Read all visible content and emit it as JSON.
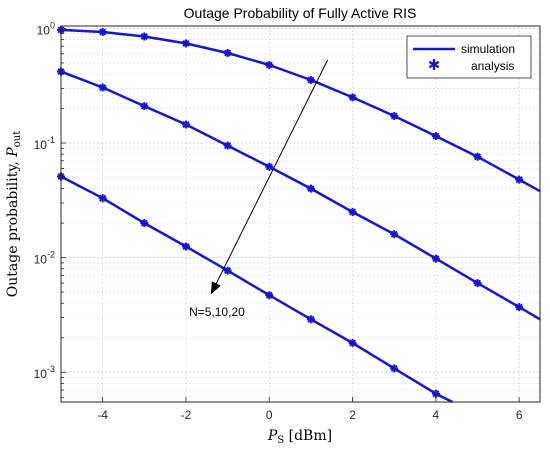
{
  "chart_data": {
    "type": "line",
    "title": "Outage Probability of Fully Active RIS",
    "xlabel_main": "P",
    "xlabel_sub": "S",
    "xlabel_unit": " [dBm]",
    "ylabel_main": "Outage probability, ",
    "ylabel_sym": "P",
    "ylabel_sub": "out",
    "xlim": [
      -5,
      6.5
    ],
    "ylim": [
      0.00055,
      1.05
    ],
    "y_scale": "log",
    "grid": true,
    "legend_position": "top-right",
    "legend": [
      {
        "label": "simulation",
        "style": "line"
      },
      {
        "label": "analysis",
        "style": "marker"
      }
    ],
    "x_ticks": [
      -4,
      -2,
      0,
      2,
      4,
      6
    ],
    "x_tick_labels": [
      "-4",
      "-2",
      "0",
      "2",
      "4",
      "6"
    ],
    "y_ticks": [
      {
        "value": 1,
        "base": "10",
        "exp": "0"
      },
      {
        "value": 0.1,
        "base": "10",
        "exp": "-1"
      },
      {
        "value": 0.01,
        "base": "10",
        "exp": "-2"
      },
      {
        "value": 0.001,
        "base": "10",
        "exp": "-3"
      }
    ],
    "annotation": {
      "text": "N=5,10,20",
      "arrow_from": [
        1.4,
        0.53
      ],
      "arrow_to": [
        -1.4,
        0.0048
      ]
    },
    "color": "#1515d4",
    "series": [
      {
        "x": [
          -5,
          -4,
          -3,
          -2,
          -1,
          0,
          1,
          2,
          3,
          4,
          5,
          6,
          6.5
        ],
        "y": [
          0.97,
          0.93,
          0.85,
          0.74,
          0.61,
          0.48,
          0.355,
          0.25,
          0.172,
          0.115,
          0.076,
          0.048,
          0.038
        ],
        "markers": [
          -5,
          -4,
          -3,
          -2,
          -1,
          0,
          1,
          2,
          3,
          4,
          5,
          6
        ]
      },
      {
        "x": [
          -5,
          -4,
          -3,
          -2,
          -1,
          0,
          1,
          2,
          3,
          4,
          5,
          6,
          6.5
        ],
        "y": [
          0.42,
          0.305,
          0.21,
          0.145,
          0.095,
          0.062,
          0.04,
          0.025,
          0.016,
          0.0098,
          0.006,
          0.0037,
          0.0029
        ],
        "markers": [
          -5,
          -4,
          -3,
          -2,
          -1,
          0,
          1,
          2,
          3,
          4,
          5,
          6
        ]
      },
      {
        "x": [
          -5,
          -4,
          -3,
          -2,
          -1,
          0,
          1,
          2,
          3,
          4,
          4.4
        ],
        "y": [
          0.051,
          0.033,
          0.02,
          0.0125,
          0.0077,
          0.0047,
          0.0029,
          0.0018,
          0.00108,
          0.00065,
          0.00055
        ],
        "markers": [
          -5,
          -4,
          -3,
          -2,
          -1,
          0,
          1,
          2,
          3,
          4
        ]
      }
    ]
  }
}
